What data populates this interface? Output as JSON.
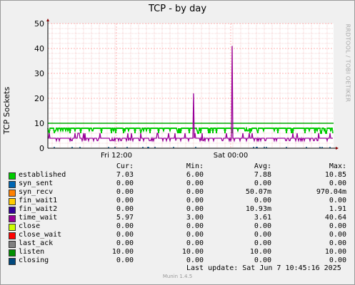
{
  "title": "TCP - by day",
  "vertical_credit": "RRDTOOL / TOBI OETIKER",
  "chart_data": {
    "type": "line",
    "title": "TCP - by day",
    "ylabel": "TCP Sockets",
    "xlabel": "",
    "ylim": [
      0,
      50
    ],
    "y_ticks": [
      "0",
      "10",
      "20",
      "30",
      "40",
      "50"
    ],
    "x_ticks": [
      "Fri 12:00",
      "Sat 00:00"
    ],
    "grid": true,
    "series": [
      {
        "name": "established",
        "color": "#00cc00",
        "level": 8,
        "dips_to": 6,
        "max": 10.85
      },
      {
        "name": "listen",
        "color": "#00aa00",
        "level": 10,
        "max": 10
      },
      {
        "name": "time_wait",
        "color": "#990099",
        "level": 4,
        "spikes": [
          22,
          41
        ],
        "max": 40.64
      },
      {
        "name": "syn_recv",
        "color": "#ff8800",
        "level": 0,
        "marks": "sparse"
      },
      {
        "name": "syn_sent",
        "color": "#0066b3",
        "level": 0,
        "marks": "sparse"
      }
    ]
  },
  "legend": {
    "headers": {
      "cur": "Cur:",
      "min": "Min:",
      "avg": "Avg:",
      "max": "Max:"
    },
    "rows": [
      {
        "name": "established",
        "color": "#00cc00",
        "cur": "7.03",
        "min": "6.00",
        "avg": "7.88",
        "max": "10.85"
      },
      {
        "name": "syn_sent",
        "color": "#0066b3",
        "cur": "0.00",
        "min": "0.00",
        "avg": "0.00",
        "max": "0.00"
      },
      {
        "name": "syn_recv",
        "color": "#ff8000",
        "cur": "0.00",
        "min": "0.00",
        "avg": "50.07m",
        "max": "970.04m"
      },
      {
        "name": "fin_wait1",
        "color": "#ffcc00",
        "cur": "0.00",
        "min": "0.00",
        "avg": "0.00",
        "max": "0.00"
      },
      {
        "name": "fin_wait2",
        "color": "#330099",
        "cur": "0.00",
        "min": "0.00",
        "avg": "10.93m",
        "max": "1.91"
      },
      {
        "name": "time_wait",
        "color": "#990099",
        "cur": "5.97",
        "min": "3.00",
        "avg": "3.61",
        "max": "40.64"
      },
      {
        "name": "close",
        "color": "#ccff00",
        "cur": "0.00",
        "min": "0.00",
        "avg": "0.00",
        "max": "0.00"
      },
      {
        "name": "close_wait",
        "color": "#ff0000",
        "cur": "0.00",
        "min": "0.00",
        "avg": "0.00",
        "max": "0.00"
      },
      {
        "name": "last_ack",
        "color": "#808080",
        "cur": "0.00",
        "min": "0.00",
        "avg": "0.00",
        "max": "0.00"
      },
      {
        "name": "listen",
        "color": "#008f00",
        "cur": "10.00",
        "min": "10.00",
        "avg": "10.00",
        "max": "10.00"
      },
      {
        "name": "closing",
        "color": "#00487d",
        "cur": "0.00",
        "min": "0.00",
        "avg": "0.00",
        "max": "0.00"
      }
    ]
  },
  "last_update": "Last update:  Sat Jun  7 10:45:16 2025",
  "footer": "Munin 1.4.5"
}
